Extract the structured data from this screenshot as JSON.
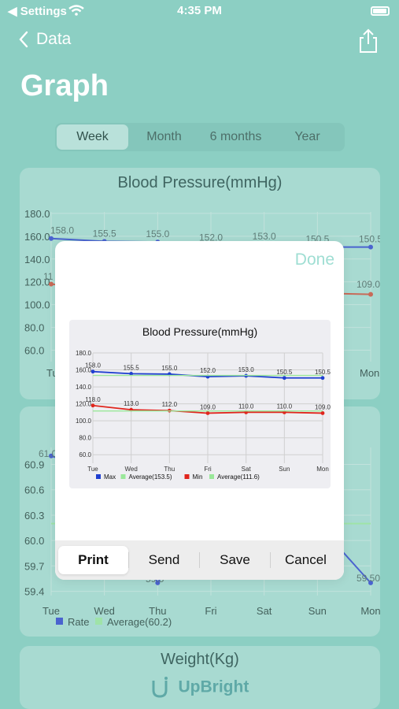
{
  "status": {
    "back_app": "◀ Settings",
    "time": "4:35 PM"
  },
  "nav": {
    "back_label": "Data"
  },
  "title": "Graph",
  "segments": [
    "Week",
    "Month",
    "6 months",
    "Year"
  ],
  "bp_card": {
    "title": "Blood Pressure(mmHg)"
  },
  "rate_card": {
    "title": ""
  },
  "weight_card": {
    "title": "Weight(Kg)"
  },
  "modal": {
    "done_label": "Done",
    "buttons": [
      "Print",
      "Send",
      "Save",
      "Cancel"
    ]
  },
  "footer": {
    "brand": "UpBright"
  },
  "colors": {
    "max": "#1f3fd0",
    "min": "#e0251d",
    "avg": "#9ae89a",
    "accent": "#9fded3"
  },
  "chart_data": [
    {
      "type": "line",
      "title": "Blood Pressure(mmHg)",
      "categories": [
        "Tue",
        "Wed",
        "Thu",
        "Fri",
        "Sat",
        "Sun",
        "Mon"
      ],
      "series": [
        {
          "name": "Max",
          "values": [
            158.0,
            155.5,
            155.0,
            152.0,
            153.0,
            150.5,
            150.5
          ]
        },
        {
          "name": "Average(153.5)",
          "values": [
            153.5,
            153.5,
            153.5,
            153.5,
            153.5,
            153.5,
            153.5
          ]
        },
        {
          "name": "Min",
          "values": [
            118.0,
            113.0,
            112.0,
            109.0,
            110.0,
            110.0,
            109.0
          ]
        },
        {
          "name": "Average(111.6)",
          "values": [
            111.6,
            111.6,
            111.6,
            111.6,
            111.6,
            111.6,
            111.6
          ]
        }
      ],
      "yticks": [
        "180.0",
        "160.0",
        "140.0",
        "120.0",
        "100.0",
        "80.0",
        "60.0"
      ],
      "ylim": [
        50,
        180
      ],
      "legend": "bottom"
    },
    {
      "type": "line",
      "title": "",
      "categories": [
        "Tue",
        "Wed",
        "Thu",
        "Fri",
        "Sat",
        "Sun",
        "Mon"
      ],
      "series": [
        {
          "name": "Rate",
          "values": [
            61.0,
            60.8,
            59.5,
            60.5,
            60.3,
            60.2,
            59.5
          ]
        },
        {
          "name": "Average(60.2)",
          "values": [
            60.2,
            60.2,
            60.2,
            60.2,
            60.2,
            60.2,
            60.2
          ]
        }
      ],
      "yticks": [
        "60.9",
        "60.6",
        "60.3",
        "60.0",
        "59.7",
        "59.4"
      ],
      "ylim": [
        59.35,
        61.1
      ],
      "legend": "bottom"
    }
  ],
  "bp_background_labels": {
    "yticks": [
      "180.0",
      "160.0",
      "140.0",
      "120.0",
      "100.0",
      "80.0",
      "60.0"
    ],
    "max_labels": [
      "158.0",
      "155.5",
      "155.0",
      "152.0",
      "153.0",
      "150.5",
      "150.5"
    ],
    "min_right": "109.0",
    "left_cut": "11",
    "x_left": "Tue",
    "x_right": "Mon"
  },
  "rate_background_labels": {
    "first": "61.0",
    "last": "59.50",
    "thu": "59.5",
    "legend": [
      "Rate",
      "Average(60.2)"
    ]
  }
}
